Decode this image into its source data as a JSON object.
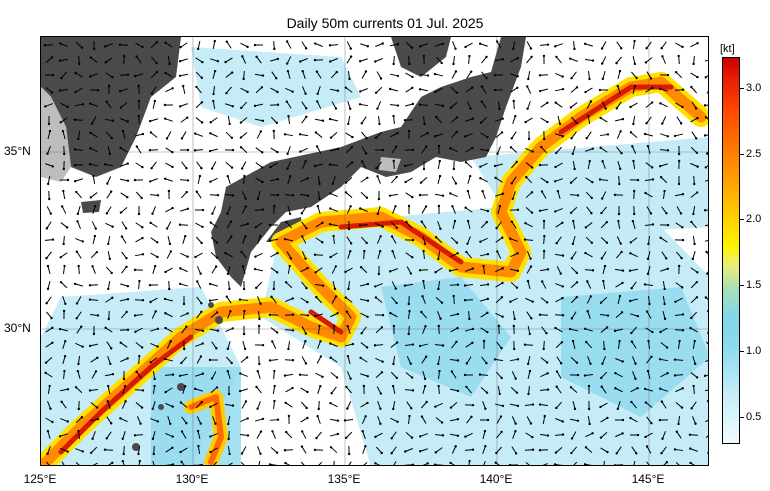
{
  "title": "Daily 50m currents 01 Jul. 2025",
  "axes": {
    "x_ticks": [
      "125°E",
      "130°E",
      "135°E",
      "140°E",
      "145°E"
    ],
    "y_ticks": [
      "35°N",
      "30°N"
    ],
    "lon_range": [
      125,
      147
    ],
    "lat_range": [
      26.5,
      38
    ]
  },
  "colorbar": {
    "unit": "[kt]",
    "ticks": [
      "3.0",
      "2.5",
      "2.0",
      "1.5",
      "1.0",
      "0.5"
    ],
    "range": [
      0.3,
      3.2
    ]
  },
  "colors": {
    "land": "#4a4a4a",
    "land_other": "#bdbdbd",
    "current_strong": "#e82000",
    "current_mid": "#ffcc00",
    "current_weak": "#8fd8ee"
  }
}
